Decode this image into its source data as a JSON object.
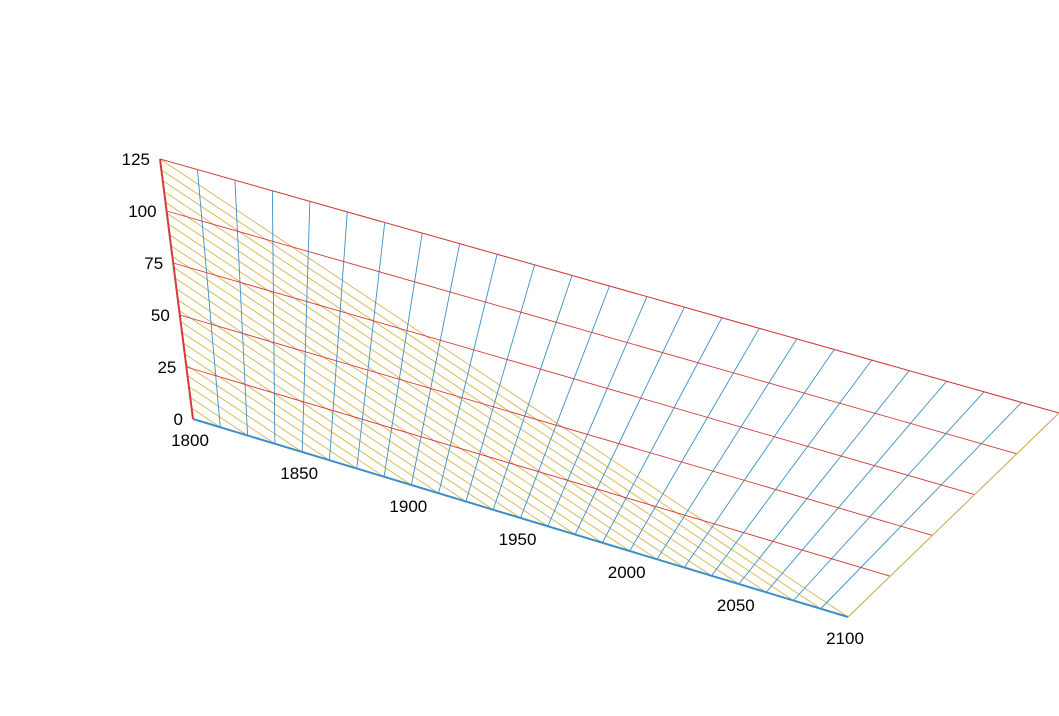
{
  "chart_data": {
    "type": "ternary",
    "title": "",
    "axes": {
      "a": {
        "label": "",
        "range": [
          1800,
          2100
        ],
        "ticks": [
          "1800",
          "1850",
          "1900",
          "1950",
          "2000",
          "2050",
          "2100"
        ],
        "color": "#3c8fc6",
        "grid_step": 25
      },
      "b": {
        "label": "",
        "range": [
          0,
          125
        ],
        "ticks": [
          "0",
          "25",
          "50",
          "75",
          "100",
          "125"
        ],
        "color": "#d23b3b",
        "grid_step": 25
      },
      "c": {
        "label": "",
        "color": "#d9b44a"
      }
    },
    "grid": true,
    "series": []
  }
}
